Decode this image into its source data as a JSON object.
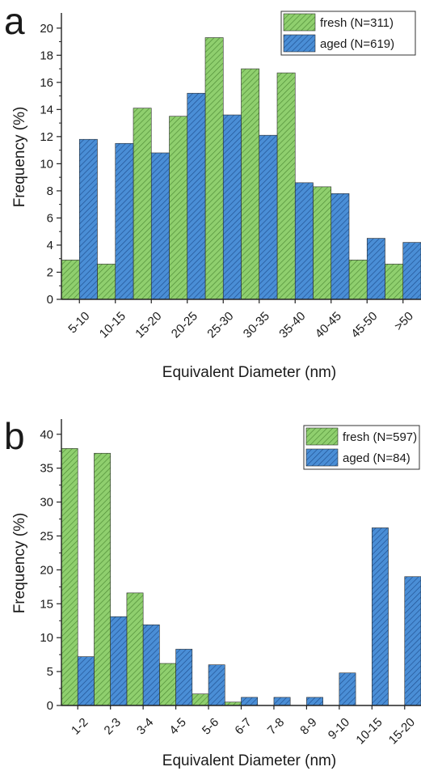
{
  "colors": {
    "fresh": "#8fcf6e",
    "aged": "#4a8ed6",
    "fresh_hatch": "#4d8a34",
    "aged_hatch": "#1f4f8f"
  },
  "chart_data": [
    {
      "panel": "a",
      "type": "bar",
      "xlabel": "Equivalent Diameter (nm)",
      "ylabel": "Frequency (%)",
      "ylim": [
        0,
        21
      ],
      "yticks": [
        0,
        2,
        4,
        6,
        8,
        10,
        12,
        14,
        16,
        18,
        20
      ],
      "grid": false,
      "legend_position": "top-right",
      "categories": [
        "5-10",
        "10-15",
        "15-20",
        "20-25",
        "25-30",
        "30-35",
        "35-40",
        "40-45",
        "45-50",
        ">50"
      ],
      "series": [
        {
          "name": "fresh (N=311)",
          "key": "fresh",
          "values": [
            2.9,
            2.6,
            14.1,
            13.5,
            19.3,
            17.0,
            16.7,
            8.3,
            2.9,
            2.6
          ]
        },
        {
          "name": "aged (N=619)",
          "key": "aged",
          "values": [
            11.8,
            11.5,
            10.8,
            15.2,
            13.6,
            12.1,
            8.6,
            7.8,
            4.5,
            4.2
          ]
        }
      ]
    },
    {
      "panel": "b",
      "type": "bar",
      "xlabel": "Equivalent Diameter (nm)",
      "ylabel": "Frequency (%)",
      "ylim": [
        0,
        42
      ],
      "yticks": [
        0,
        5,
        10,
        15,
        20,
        25,
        30,
        35,
        40
      ],
      "grid": false,
      "legend_position": "top-right",
      "categories": [
        "1-2",
        "2-3",
        "3-4",
        "4-5",
        "5-6",
        "6-7",
        "7-8",
        "8-9",
        "9-10",
        "10-15",
        "15-20"
      ],
      "series": [
        {
          "name": "fresh (N=597)",
          "key": "fresh",
          "values": [
            37.9,
            37.2,
            16.6,
            6.2,
            1.7,
            0.5,
            0,
            0,
            0,
            0,
            0
          ]
        },
        {
          "name": "aged (N=84)",
          "key": "aged",
          "values": [
            7.2,
            13.1,
            11.9,
            8.3,
            6.0,
            1.2,
            1.2,
            1.2,
            4.8,
            26.2,
            19.0
          ]
        }
      ]
    }
  ]
}
